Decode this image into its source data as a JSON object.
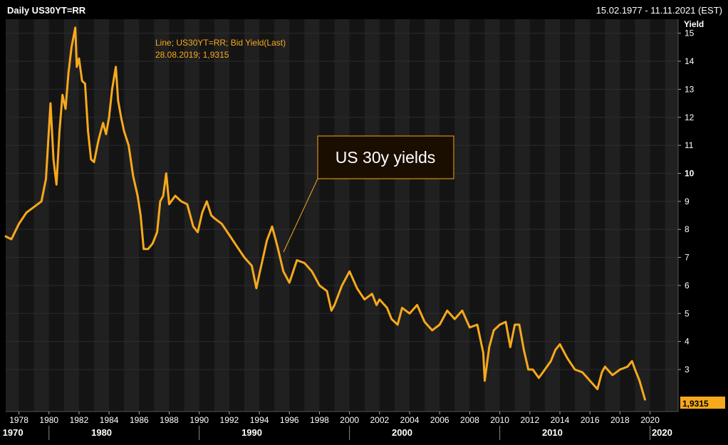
{
  "header": {
    "title": "Daily US30YT=RR",
    "date_range": "15.02.1977 - 11.11.2021 (EST)"
  },
  "legend": {
    "line1": "Line; US30YT=RR; Bid Yield(Last)",
    "line2": "28.08.2019; 1,9315"
  },
  "annotation": {
    "text": "US 30y yields"
  },
  "last_value_label": "1,9315",
  "colors": {
    "background": "#000000",
    "plot_band_light": "#202020",
    "plot_band_dark": "#141414",
    "series": "#f7a91c",
    "text": "#ffffff",
    "legend_text": "#f7a91c",
    "annotation_border": "#f7a91c",
    "annotation_bg": "#1a0e00"
  },
  "chart_data": {
    "type": "line",
    "title": "Daily US30YT=RR",
    "ylabel": "Yield",
    "xlim": [
      1977.12,
      2021.87
    ],
    "ylim": [
      1.5,
      15.5
    ],
    "y_ticks": [
      3,
      4,
      5,
      6,
      7,
      8,
      9,
      10,
      11,
      12,
      13,
      14,
      15
    ],
    "x_ticks": [
      "1978",
      "1980",
      "1982",
      "1984",
      "1986",
      "1988",
      "1990",
      "1992",
      "1994",
      "1996",
      "1998",
      "2000",
      "2002",
      "2004",
      "2006",
      "2008",
      "2010",
      "2012",
      "2014",
      "2016",
      "2018",
      "2020"
    ],
    "x_tick_values": [
      1978,
      1980,
      1982,
      1984,
      1986,
      1988,
      1990,
      1992,
      1994,
      1996,
      1998,
      2000,
      2002,
      2004,
      2006,
      2008,
      2010,
      2012,
      2014,
      2016,
      2018,
      2020
    ],
    "decade_labels": [
      "1970",
      "1980",
      "1990",
      "2000",
      "2010",
      "2020"
    ],
    "decade_label_positions": [
      1977.6,
      1983.5,
      1993.5,
      2003.5,
      2013.5,
      2020.8
    ],
    "decade_separators": [
      1980,
      1990,
      2000,
      2010,
      2020
    ],
    "series": [
      {
        "name": "US30YT=RR",
        "x": [
          1977.12,
          1977.5,
          1978.0,
          1978.5,
          1979.0,
          1979.5,
          1979.8,
          1980.1,
          1980.3,
          1980.5,
          1980.7,
          1980.9,
          1981.1,
          1981.3,
          1981.5,
          1981.75,
          1981.85,
          1982.0,
          1982.2,
          1982.4,
          1982.6,
          1982.8,
          1983.0,
          1983.3,
          1983.6,
          1983.8,
          1984.0,
          1984.2,
          1984.45,
          1984.6,
          1984.8,
          1985.0,
          1985.3,
          1985.6,
          1985.9,
          1986.1,
          1986.3,
          1986.6,
          1986.9,
          1987.2,
          1987.4,
          1987.6,
          1987.8,
          1988.0,
          1988.4,
          1988.8,
          1989.2,
          1989.6,
          1989.9,
          1990.2,
          1990.5,
          1990.8,
          1991.0,
          1991.5,
          1992.0,
          1992.5,
          1993.0,
          1993.5,
          1993.8,
          1994.0,
          1994.5,
          1994.85,
          1995.2,
          1995.6,
          1996.0,
          1996.5,
          1997.0,
          1997.5,
          1998.0,
          1998.5,
          1998.8,
          1999.0,
          1999.5,
          2000.0,
          2000.5,
          2001.0,
          2001.5,
          2001.8,
          2002.0,
          2002.5,
          2002.8,
          2003.2,
          2003.5,
          2004.0,
          2004.5,
          2005.0,
          2005.5,
          2006.0,
          2006.5,
          2007.0,
          2007.5,
          2008.0,
          2008.5,
          2008.9,
          2009.0,
          2009.3,
          2009.6,
          2010.0,
          2010.4,
          2010.7,
          2011.0,
          2011.3,
          2011.6,
          2011.9,
          2012.2,
          2012.6,
          2013.0,
          2013.4,
          2013.7,
          2014.0,
          2014.5,
          2015.0,
          2015.5,
          2016.0,
          2016.5,
          2016.8,
          2017.0,
          2017.5,
          2018.0,
          2018.5,
          2018.8,
          2019.0,
          2019.3,
          2019.66
        ],
        "y": [
          7.75,
          7.65,
          8.2,
          8.6,
          8.8,
          9.0,
          9.8,
          12.5,
          10.5,
          9.6,
          11.5,
          12.8,
          12.3,
          13.6,
          14.5,
          15.2,
          13.8,
          14.1,
          13.3,
          13.2,
          11.5,
          10.5,
          10.4,
          11.2,
          11.8,
          11.4,
          12.0,
          13.0,
          13.8,
          12.6,
          12.0,
          11.5,
          11.0,
          9.9,
          9.2,
          8.5,
          7.3,
          7.3,
          7.5,
          7.9,
          9.0,
          9.2,
          10.0,
          8.9,
          9.2,
          9.0,
          8.9,
          8.1,
          7.9,
          8.6,
          9.0,
          8.5,
          8.4,
          8.2,
          7.8,
          7.4,
          7.0,
          6.7,
          5.9,
          6.4,
          7.6,
          8.1,
          7.4,
          6.5,
          6.1,
          6.9,
          6.8,
          6.5,
          6.0,
          5.8,
          5.1,
          5.3,
          6.0,
          6.5,
          5.9,
          5.5,
          5.7,
          5.3,
          5.5,
          5.2,
          4.8,
          4.6,
          5.2,
          5.0,
          5.3,
          4.7,
          4.4,
          4.6,
          5.1,
          4.8,
          5.1,
          4.5,
          4.6,
          3.6,
          2.6,
          3.8,
          4.4,
          4.6,
          4.7,
          3.8,
          4.6,
          4.6,
          3.7,
          3.0,
          3.0,
          2.7,
          3.0,
          3.3,
          3.7,
          3.9,
          3.4,
          3.0,
          2.9,
          2.6,
          2.3,
          2.9,
          3.1,
          2.8,
          3.0,
          3.1,
          3.3,
          3.0,
          2.6,
          1.93
        ]
      }
    ]
  }
}
